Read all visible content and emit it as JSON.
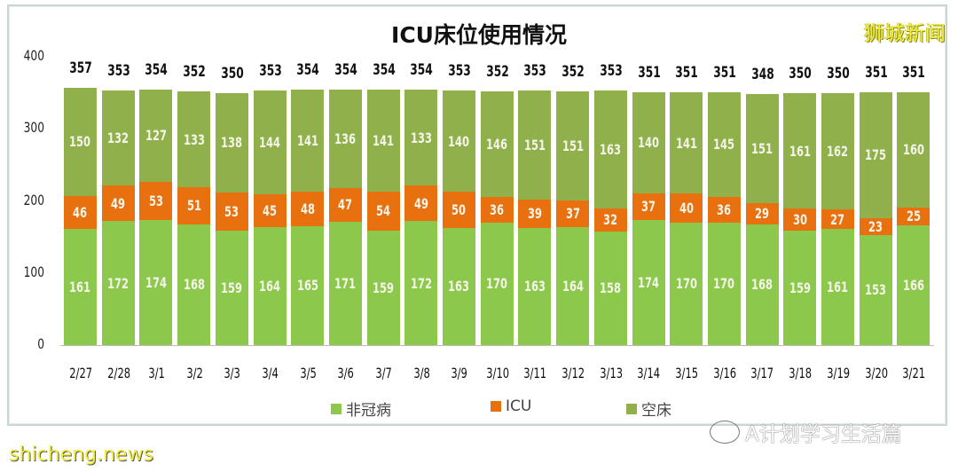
{
  "header": {
    "title": "ICU床位使用情况",
    "brand_watermark": "狮城新闻"
  },
  "watermarks": {
    "wechat": "A计划学习生活篇",
    "site": "shicheng.news"
  },
  "colors": {
    "non_covid": "#8cc84b",
    "icu": "#e8700f",
    "empty": "#8fb04a"
  },
  "chart_data": {
    "type": "bar",
    "stacked": true,
    "title": "ICU床位使用情况",
    "xlabel": "",
    "ylabel": "",
    "ylim": [
      0,
      400
    ],
    "yticks": [
      0,
      100,
      200,
      300,
      400
    ],
    "grid": false,
    "legend_position": "bottom",
    "categories": [
      "2/27",
      "2/28",
      "3/1",
      "3/2",
      "3/3",
      "3/4",
      "3/5",
      "3/6",
      "3/7",
      "3/8",
      "3/9",
      "3/10",
      "3/11",
      "3/12",
      "3/13",
      "3/14",
      "3/15",
      "3/16",
      "3/17",
      "3/18",
      "3/19",
      "3/20",
      "3/21"
    ],
    "series": [
      {
        "name": "非冠病",
        "color": "#8cc84b",
        "values": [
          161,
          172,
          174,
          168,
          159,
          164,
          165,
          171,
          159,
          172,
          163,
          170,
          163,
          164,
          158,
          174,
          170,
          170,
          168,
          159,
          161,
          153,
          166
        ]
      },
      {
        "name": "ICU",
        "color": "#e8700f",
        "values": [
          46,
          49,
          53,
          51,
          53,
          45,
          48,
          47,
          54,
          49,
          50,
          36,
          39,
          37,
          32,
          37,
          40,
          36,
          29,
          30,
          27,
          23,
          25
        ]
      },
      {
        "name": "空床",
        "color": "#8fb04a",
        "values": [
          150,
          132,
          127,
          133,
          138,
          144,
          141,
          136,
          141,
          133,
          140,
          146,
          151,
          151,
          163,
          140,
          141,
          145,
          151,
          161,
          162,
          175,
          160
        ]
      }
    ],
    "totals": [
      357,
      353,
      354,
      352,
      350,
      353,
      354,
      354,
      354,
      354,
      353,
      352,
      353,
      352,
      353,
      351,
      351,
      351,
      348,
      350,
      350,
      351,
      351
    ]
  }
}
